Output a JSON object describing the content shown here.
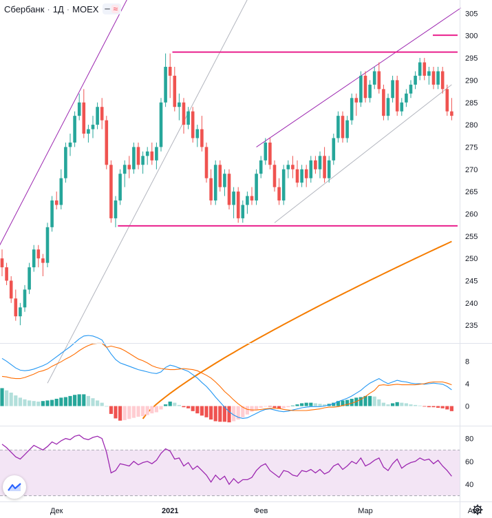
{
  "header": {
    "symbol": "Сбербанк",
    "interval": "1Д",
    "exchange": "MOEX",
    "separator": "·",
    "indicator_glyph": "≈"
  },
  "colors": {
    "up": "#26a69a",
    "down": "#ef5350",
    "hist_up_strong": "#26a69a",
    "hist_up_weak": "#b2dfdb",
    "hist_down_strong": "#ef5350",
    "hist_down_weak": "#ffcdd2",
    "ma": "#f57c00",
    "level": "#e91e8c",
    "channel": "#9c27b0",
    "trendline": "#b2b5be",
    "macd": "#2196f3",
    "signal": "#ff6d00",
    "rsi": "#9c27b0",
    "rsi_band": "#f3e5f5"
  },
  "icons": {
    "logo": "tradingview-logo-icon",
    "settings": "gear-icon"
  },
  "chart_data": [
    {
      "type": "candlestick",
      "title": "Сбербанк · 1Д · MOEX",
      "ylim": [
        231,
        308
      ],
      "y_ticks": [
        235,
        240,
        245,
        250,
        255,
        260,
        265,
        270,
        275,
        280,
        285,
        290,
        295,
        300,
        305
      ],
      "x_tick_labels": [
        "Дек",
        "2021",
        "Фев",
        "Мар",
        "Апр"
      ],
      "x_tick_index": [
        12,
        37,
        57,
        80,
        104
      ],
      "ohlc": [
        [
          250,
          252,
          246,
          248
        ],
        [
          248,
          249,
          244,
          245
        ],
        [
          245,
          246,
          240,
          241
        ],
        [
          241,
          243,
          236,
          237
        ],
        [
          237,
          240,
          235,
          239
        ],
        [
          239,
          244,
          238,
          243
        ],
        [
          243,
          249,
          242,
          248
        ],
        [
          248,
          253,
          247,
          252
        ],
        [
          252,
          253,
          248,
          250
        ],
        [
          250,
          251,
          246,
          249
        ],
        [
          249,
          258,
          248,
          257
        ],
        [
          257,
          264,
          256,
          263
        ],
        [
          263,
          265,
          261,
          262
        ],
        [
          262,
          270,
          261,
          268
        ],
        [
          268,
          276,
          267,
          275
        ],
        [
          275,
          278,
          273,
          276
        ],
        [
          276,
          283,
          275,
          282
        ],
        [
          282,
          287,
          281,
          285
        ],
        [
          285,
          288,
          277,
          278
        ],
        [
          278,
          280,
          276,
          279
        ],
        [
          279,
          282,
          277,
          280
        ],
        [
          280,
          285,
          279,
          284
        ],
        [
          284,
          286,
          279,
          281
        ],
        [
          281,
          282,
          270,
          271
        ],
        [
          271,
          272,
          258,
          259
        ],
        [
          259,
          264,
          257,
          263
        ],
        [
          263,
          270,
          262,
          269
        ],
        [
          269,
          272,
          266,
          271
        ],
        [
          271,
          273,
          268,
          270
        ],
        [
          270,
          276,
          269,
          275
        ],
        [
          275,
          276,
          270,
          271
        ],
        [
          271,
          274,
          269,
          273
        ],
        [
          273,
          275,
          271,
          274
        ],
        [
          274,
          276,
          271,
          272
        ],
        [
          272,
          276,
          270,
          275
        ],
        [
          275,
          286,
          274,
          285
        ],
        [
          285,
          296,
          284,
          293
        ],
        [
          293,
          296,
          286,
          291
        ],
        [
          291,
          293,
          283,
          284
        ],
        [
          284,
          287,
          281,
          285
        ],
        [
          285,
          286,
          278,
          280
        ],
        [
          280,
          284,
          279,
          283
        ],
        [
          283,
          284,
          276,
          277
        ],
        [
          277,
          280,
          275,
          279
        ],
        [
          279,
          282,
          274,
          275
        ],
        [
          275,
          276,
          267,
          268
        ],
        [
          268,
          270,
          262,
          263
        ],
        [
          263,
          272,
          262,
          271
        ],
        [
          271,
          272,
          265,
          266
        ],
        [
          266,
          270,
          264,
          269
        ],
        [
          269,
          270,
          261,
          262
        ],
        [
          262,
          266,
          259,
          265
        ],
        [
          265,
          266,
          258,
          259
        ],
        [
          259,
          263,
          258,
          262
        ],
        [
          262,
          265,
          260,
          264
        ],
        [
          264,
          266,
          262,
          263
        ],
        [
          263,
          270,
          262,
          269
        ],
        [
          269,
          273,
          268,
          272
        ],
        [
          272,
          277,
          271,
          276
        ],
        [
          276,
          277,
          270,
          271
        ],
        [
          271,
          272,
          265,
          266
        ],
        [
          266,
          268,
          262,
          263
        ],
        [
          263,
          271,
          262,
          270
        ],
        [
          270,
          272,
          268,
          271
        ],
        [
          271,
          273,
          268,
          270
        ],
        [
          270,
          272,
          266,
          267
        ],
        [
          267,
          271,
          266,
          270
        ],
        [
          270,
          271,
          266,
          268
        ],
        [
          268,
          273,
          267,
          272
        ],
        [
          272,
          273,
          269,
          270
        ],
        [
          270,
          274,
          268,
          273
        ],
        [
          273,
          275,
          267,
          268
        ],
        [
          268,
          273,
          267,
          272
        ],
        [
          272,
          278,
          271,
          277
        ],
        [
          277,
          283,
          276,
          282
        ],
        [
          282,
          283,
          276,
          277
        ],
        [
          277,
          282,
          276,
          281
        ],
        [
          281,
          287,
          280,
          286
        ],
        [
          286,
          287,
          282,
          285
        ],
        [
          285,
          292,
          284,
          291
        ],
        [
          291,
          292,
          285,
          286
        ],
        [
          286,
          290,
          285,
          289
        ],
        [
          289,
          293,
          288,
          292
        ],
        [
          292,
          294,
          287,
          288
        ],
        [
          288,
          289,
          281,
          282
        ],
        [
          282,
          287,
          281,
          286
        ],
        [
          286,
          291,
          285,
          290
        ],
        [
          290,
          291,
          282,
          283
        ],
        [
          283,
          286,
          282,
          285
        ],
        [
          285,
          288,
          284,
          287
        ],
        [
          287,
          290,
          286,
          289
        ],
        [
          289,
          292,
          288,
          291
        ],
        [
          291,
          295,
          290,
          294
        ],
        [
          294,
          295,
          290,
          291
        ],
        [
          291,
          293,
          289,
          292
        ],
        [
          292,
          293,
          288,
          289
        ],
        [
          289,
          293,
          288,
          292
        ],
        [
          292,
          293,
          287,
          288
        ],
        [
          288,
          289,
          282,
          283
        ],
        [
          283,
          286,
          281,
          282
        ]
      ],
      "moving_average": {
        "start": 214,
        "end": 253.8
      },
      "levels": [
        {
          "name": "resistance",
          "value": 296.3
        },
        {
          "name": "support",
          "value": 257.3
        },
        {
          "name": "target-marker",
          "value": 300.1
        }
      ]
    },
    {
      "type": "bar",
      "panel": "macd",
      "ylim": [
        -3.5,
        11
      ],
      "y_ticks": [
        0,
        4,
        8
      ],
      "histogram": [
        3.2,
        2.8,
        2.4,
        1.9,
        1.5,
        1.2,
        1.0,
        0.9,
        0.8,
        0.9,
        1.0,
        1.1,
        1.3,
        1.5,
        1.6,
        1.8,
        2.0,
        2.1,
        2.1,
        1.8,
        1.4,
        1.0,
        0.6,
        0.0,
        -1.4,
        -2.2,
        -2.6,
        -2.5,
        -2.3,
        -2.1,
        -1.9,
        -1.8,
        -1.6,
        -1.3,
        -1.1,
        -0.6,
        0.3,
        0.8,
        0.6,
        0.2,
        -0.2,
        -0.4,
        -0.9,
        -1.3,
        -1.7,
        -2.0,
        -2.4,
        -2.7,
        -2.8,
        -2.8,
        -2.9,
        -2.7,
        -2.4,
        -2.0,
        -1.5,
        -1.0,
        -0.6,
        -0.3,
        -0.1,
        -0.1,
        -0.3,
        -0.5,
        -0.4,
        -0.2,
        0.1,
        0.3,
        0.5,
        0.6,
        0.6,
        0.5,
        0.4,
        0.3,
        0.4,
        0.6,
        0.9,
        1.0,
        1.1,
        1.3,
        1.5,
        1.6,
        1.8,
        1.8,
        1.7,
        1.2,
        0.6,
        0.3,
        0.5,
        0.7,
        0.6,
        0.5,
        0.3,
        0.2,
        0.1,
        -0.1,
        -0.2,
        -0.2,
        -0.3,
        -0.4,
        -0.6,
        -0.9
      ],
      "macd": [
        8.5,
        8.0,
        7.4,
        6.8,
        6.4,
        6.3,
        6.4,
        6.6,
        6.9,
        7.2,
        7.6,
        8.2,
        8.8,
        9.4,
        10.0,
        10.6,
        11.3,
        12.0,
        12.5,
        12.6,
        12.5,
        12.2,
        11.8,
        10.5,
        9.3,
        8.3,
        7.7,
        7.4,
        7.1,
        6.8,
        6.5,
        6.3,
        6.1,
        5.9,
        5.8,
        6.1,
        6.9,
        7.3,
        7.1,
        6.8,
        6.5,
        6.2,
        5.6,
        5.0,
        4.2,
        3.5,
        2.6,
        1.6,
        0.7,
        -0.2,
        -1.0,
        -1.6,
        -2.0,
        -2.2,
        -2.1,
        -1.7,
        -1.3,
        -0.9,
        -0.6,
        -0.5,
        -0.7,
        -0.9,
        -1.0,
        -0.9,
        -0.7,
        -0.5,
        -0.3,
        -0.2,
        -0.1,
        -0.1,
        -0.1,
        0.0,
        0.2,
        0.4,
        0.8,
        1.1,
        1.4,
        1.8,
        2.3,
        2.8,
        3.5,
        4.1,
        4.5,
        4.9,
        4.4,
        4.0,
        4.3,
        4.6,
        4.4,
        4.3,
        4.1,
        4.0,
        4.0,
        3.9,
        4.0,
        4.1,
        4.0,
        3.9,
        3.5,
        2.9
      ],
      "signal": [
        5.3,
        5.2,
        5.0,
        4.9,
        4.9,
        5.1,
        5.4,
        5.7,
        6.1,
        6.3,
        6.6,
        7.1,
        7.5,
        7.9,
        8.4,
        8.8,
        9.3,
        9.9,
        10.4,
        10.8,
        11.1,
        11.2,
        11.2,
        10.5,
        10.7,
        10.5,
        10.3,
        9.9,
        9.4,
        8.9,
        8.4,
        8.1,
        7.7,
        7.2,
        6.9,
        6.7,
        6.6,
        6.5,
        6.5,
        6.6,
        6.7,
        6.6,
        6.5,
        6.3,
        5.9,
        5.5,
        5.0,
        4.3,
        3.5,
        2.6,
        1.9,
        1.1,
        0.4,
        -0.2,
        -0.6,
        -0.7,
        -0.7,
        -0.6,
        -0.5,
        -0.4,
        -0.4,
        -0.4,
        -0.6,
        -0.7,
        -0.8,
        -0.8,
        -0.8,
        -0.8,
        -0.7,
        -0.6,
        -0.5,
        -0.3,
        -0.2,
        -0.2,
        -0.1,
        0.1,
        0.3,
        0.5,
        0.8,
        1.2,
        1.7,
        2.3,
        2.8,
        3.7,
        3.8,
        3.7,
        3.8,
        3.9,
        3.8,
        3.8,
        3.8,
        3.8,
        3.9,
        4.0,
        4.2,
        4.3,
        4.3,
        4.3,
        4.1,
        3.8
      ]
    },
    {
      "type": "line",
      "panel": "rsi",
      "ylim": [
        25,
        90
      ],
      "y_ticks": [
        40,
        60,
        80
      ],
      "band": [
        30,
        70
      ],
      "values": [
        75,
        72,
        68,
        64,
        62,
        66,
        70,
        74,
        72,
        70,
        73,
        77,
        75,
        78,
        80,
        79,
        82,
        83,
        80,
        79,
        81,
        82,
        80,
        68,
        50,
        52,
        58,
        57,
        56,
        60,
        57,
        59,
        60,
        58,
        61,
        67,
        71,
        69,
        62,
        63,
        56,
        59,
        53,
        56,
        52,
        48,
        42,
        48,
        44,
        47,
        40,
        45,
        41,
        44,
        44,
        46,
        52,
        56,
        58,
        52,
        49,
        46,
        52,
        51,
        48,
        47,
        52,
        51,
        53,
        50,
        53,
        49,
        51,
        56,
        58,
        53,
        56,
        60,
        58,
        63,
        56,
        58,
        61,
        63,
        55,
        52,
        58,
        62,
        54,
        57,
        59,
        60,
        63,
        61,
        62,
        58,
        61,
        56,
        52,
        47
      ]
    }
  ]
}
